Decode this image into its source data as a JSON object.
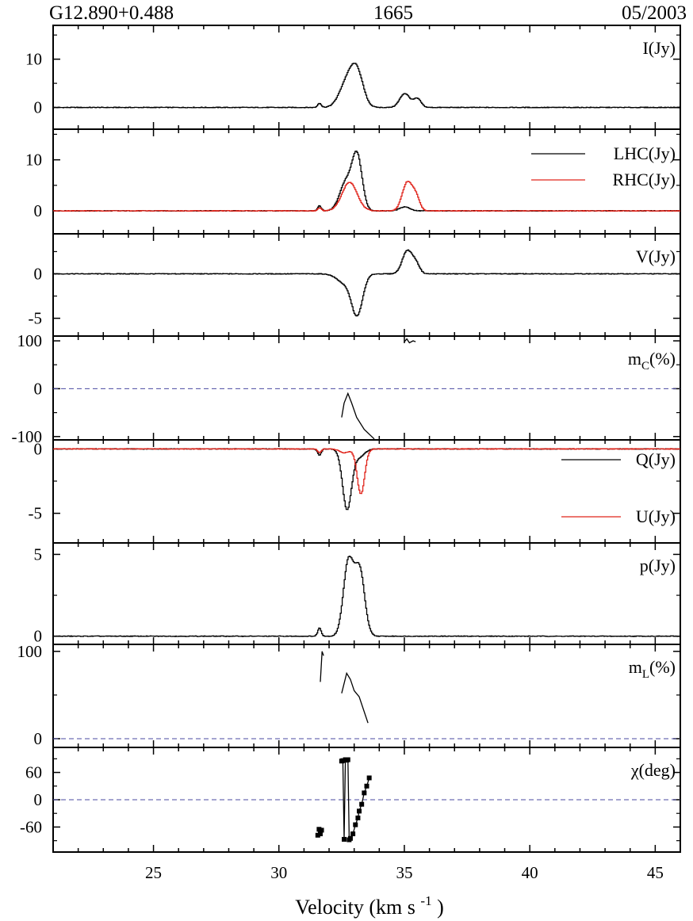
{
  "header": {
    "source": "G12.890+0.488",
    "frequency": "1665",
    "date": "05/2003"
  },
  "colors": {
    "black": "#000000",
    "red": "#e0241b",
    "dash": "#4a4aa0"
  },
  "chart_data": {
    "type": "line",
    "xlabel_main": "Velocity (km s",
    "xlabel_sup": "-1",
    "xlabel_end": ")",
    "xlim": [
      21,
      46
    ],
    "x_ticks": [
      25,
      30,
      35,
      40,
      45
    ],
    "x_tick_labels": [
      "25",
      "30",
      "35",
      "40",
      "45"
    ],
    "panels": [
      {
        "label_main": "I(Jy)",
        "label_sub": "",
        "ylim": [
          -4.5,
          17
        ],
        "y_ticks": [
          0,
          10
        ],
        "y_tick_labels": [
          "0",
          "10"
        ],
        "series": [
          {
            "name": "I",
            "color": "#000000",
            "step": true,
            "components": [
              [
                31.6,
                0.9,
                0.07
              ],
              [
                32.7,
                5.2,
                0.3
              ],
              [
                33.1,
                6.5,
                0.25
              ],
              [
                35.0,
                2.9,
                0.2
              ],
              [
                35.5,
                1.8,
                0.15
              ]
            ]
          }
        ]
      },
      {
        "label_main": "",
        "label_sub": "",
        "ylim": [
          -4.5,
          16
        ],
        "y_ticks": [
          0,
          10
        ],
        "y_tick_labels": [
          "0",
          "10"
        ],
        "legend": [
          {
            "text": "LHC(Jy)",
            "color": "#000000"
          },
          {
            "text": "RHC(Jy)",
            "color": "#e0241b"
          }
        ],
        "series": [
          {
            "name": "LHC",
            "color": "#000000",
            "step": true,
            "components": [
              [
                31.6,
                1.0,
                0.07
              ],
              [
                32.65,
                5.5,
                0.25
              ],
              [
                33.1,
                10.5,
                0.2
              ],
              [
                35.0,
                0.8,
                0.2
              ]
            ]
          },
          {
            "name": "RHC",
            "color": "#e0241b",
            "step": true,
            "components": [
              [
                31.6,
                0.6,
                0.07
              ],
              [
                32.8,
                5.6,
                0.3
              ],
              [
                35.1,
                5.6,
                0.2
              ],
              [
                35.45,
                2.5,
                0.15
              ]
            ]
          }
        ]
      },
      {
        "label_main": "V(Jy)",
        "label_sub": "",
        "ylim": [
          -7,
          4.5
        ],
        "y_ticks": [
          -5,
          0
        ],
        "y_tick_labels": [
          "-5",
          "0"
        ],
        "series": [
          {
            "name": "V",
            "color": "#000000",
            "step": true,
            "components": [
              [
                32.6,
                -1.0,
                0.3
              ],
              [
                33.1,
                -4.5,
                0.22
              ],
              [
                35.1,
                2.6,
                0.2
              ],
              [
                35.45,
                1.0,
                0.15
              ]
            ]
          }
        ]
      },
      {
        "label_main": "m",
        "label_sub": "C",
        "label_end": "(%)",
        "ylim": [
          -107,
          110
        ],
        "y_ticks": [
          -100,
          0,
          100
        ],
        "y_tick_labels": [
          "-100",
          "0",
          "100"
        ],
        "zero_line": true,
        "series": [
          {
            "name": "mC",
            "color": "#000000",
            "step": false,
            "points": [
              [
                32.5,
                -60
              ],
              [
                32.6,
                -30
              ],
              [
                32.75,
                -10
              ],
              [
                32.9,
                -30
              ],
              [
                33.1,
                -60
              ],
              [
                33.4,
                -85
              ],
              [
                33.8,
                -105
              ]
            ]
          },
          {
            "name": "mC-high",
            "color": "#000000",
            "step": false,
            "points": [
              [
                35.0,
                98
              ],
              [
                35.1,
                104
              ],
              [
                35.2,
                96
              ],
              [
                35.35,
                100
              ],
              [
                35.45,
                98
              ]
            ]
          }
        ]
      },
      {
        "label_main": "",
        "label_sub": "",
        "ylim": [
          -7.3,
          0.7
        ],
        "y_ticks": [
          -5,
          0
        ],
        "y_tick_labels": [
          "-5",
          "0"
        ],
        "legend": [
          {
            "text": "Q(Jy)",
            "color": "#000000"
          },
          {
            "text": "U(Jy)",
            "color": "#e0241b"
          }
        ],
        "series": [
          {
            "name": "Q",
            "color": "#000000",
            "step": true,
            "components": [
              [
                31.6,
                -0.5,
                0.07
              ],
              [
                32.7,
                -4.7,
                0.18
              ],
              [
                33.2,
                -0.6,
                0.2
              ]
            ]
          },
          {
            "name": "U",
            "color": "#e0241b",
            "step": true,
            "components": [
              [
                31.6,
                -0.3,
                0.07
              ],
              [
                33.25,
                -3.5,
                0.15
              ],
              [
                32.6,
                -0.3,
                0.2
              ]
            ]
          }
        ]
      },
      {
        "label_main": "p(Jy)",
        "label_sub": "",
        "ylim": [
          -0.5,
          5.7
        ],
        "y_ticks": [
          0,
          5
        ],
        "y_tick_labels": [
          "0",
          "5"
        ],
        "series": [
          {
            "name": "p",
            "color": "#000000",
            "step": true,
            "components": [
              [
                31.6,
                0.5,
                0.07
              ],
              [
                32.75,
                4.5,
                0.2
              ],
              [
                33.2,
                4.0,
                0.2
              ]
            ]
          }
        ]
      },
      {
        "label_main": "m",
        "label_sub": "L",
        "label_end": "(%)",
        "ylim": [
          -10,
          108
        ],
        "y_ticks": [
          0,
          100
        ],
        "y_tick_labels": [
          "0",
          "100"
        ],
        "zero_line": true,
        "series": [
          {
            "name": "mL-a",
            "color": "#000000",
            "step": false,
            "points": [
              [
                31.65,
                65
              ],
              [
                31.72,
                100
              ],
              [
                31.78,
                95
              ]
            ]
          },
          {
            "name": "mL-b",
            "color": "#000000",
            "step": false,
            "points": [
              [
                32.5,
                52
              ],
              [
                32.7,
                75
              ],
              [
                32.85,
                68
              ],
              [
                33.0,
                55
              ],
              [
                33.2,
                48
              ],
              [
                33.55,
                18
              ]
            ]
          }
        ]
      },
      {
        "label_main": "χ(deg)",
        "label_sub": "",
        "ylim": [
          -115,
          115
        ],
        "y_ticks": [
          -60,
          0,
          60
        ],
        "y_tick_labels": [
          "-60",
          "0",
          "60"
        ],
        "zero_line": true,
        "series": [
          {
            "name": "chi-a",
            "color": "#000000",
            "step": false,
            "markers": true,
            "points": [
              [
                31.55,
                -78
              ],
              [
                31.65,
                -75
              ],
              [
                31.6,
                -65
              ],
              [
                31.7,
                -67
              ]
            ]
          },
          {
            "name": "chi-b",
            "color": "#000000",
            "step": false,
            "markers": true,
            "points": [
              [
                32.5,
                85
              ],
              [
                32.55,
                86
              ],
              [
                32.6,
                -87
              ],
              [
                32.65,
                88
              ],
              [
                32.7,
                87
              ],
              [
                32.75,
                88
              ],
              [
                32.8,
                -88
              ]
            ]
          },
          {
            "name": "chi-c",
            "color": "#000000",
            "step": false,
            "markers": true,
            "points": [
              [
                32.85,
                -85
              ],
              [
                32.95,
                -75
              ],
              [
                33.05,
                -55
              ],
              [
                33.15,
                -40
              ],
              [
                33.2,
                -25
              ],
              [
                33.3,
                -10
              ],
              [
                33.4,
                15
              ],
              [
                33.5,
                30
              ],
              [
                33.6,
                48
              ]
            ]
          }
        ]
      }
    ]
  }
}
